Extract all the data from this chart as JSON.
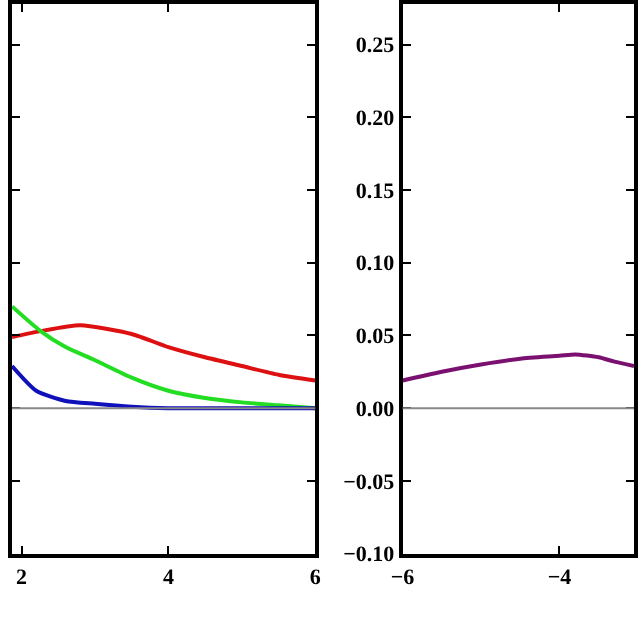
{
  "chart_data": [
    {
      "type": "line",
      "xlim": [
        1.87,
        6
      ],
      "xticks": [
        2,
        4,
        6
      ],
      "ylim": [
        -0.1,
        0.278
      ],
      "yticks": [
        -0.1,
        -0.05,
        0,
        0.05,
        0.1,
        0.15,
        0.2,
        0.25
      ],
      "tick_labels": "x",
      "ref_lines": [
        {
          "axis": "y",
          "value": 0,
          "color": "#888888"
        }
      ],
      "series": [
        {
          "color": "#dd1111",
          "x": [
            1.87,
            2.26,
            2.8,
            3.5,
            4,
            4.5,
            5,
            5.5,
            6
          ],
          "values": [
            0.049,
            0.053,
            0.057,
            0.051,
            0.042,
            0.035,
            0.029,
            0.023,
            0.019
          ]
        },
        {
          "color": "#22dd22",
          "x": [
            1.87,
            2.26,
            2.6,
            3,
            3.5,
            4,
            4.5,
            5,
            5.5,
            6
          ],
          "values": [
            0.07,
            0.053,
            0.042,
            0.033,
            0.021,
            0.012,
            0.007,
            0.004,
            0.002,
            0
          ]
        },
        {
          "color": "#1111bb",
          "x": [
            1.87,
            2.2,
            2.6,
            3,
            3.5,
            4,
            5,
            6
          ],
          "values": [
            0.029,
            0.012,
            0.005,
            0.003,
            0.001,
            0,
            0,
            0
          ]
        }
      ]
    },
    {
      "type": "line",
      "xlim": [
        -6,
        -3.05
      ],
      "xticks": [
        {
          "value": -6,
          "label": "−6"
        },
        {
          "value": -4,
          "label": "−4"
        }
      ],
      "ylim": [
        -0.1,
        0.278
      ],
      "yticks": [
        {
          "value": -0.1,
          "label": "−0.10"
        },
        {
          "value": -0.05,
          "label": "−0.05"
        },
        {
          "value": 0,
          "label": "0.00"
        },
        {
          "value": 0.05,
          "label": "0.05"
        },
        {
          "value": 0.1,
          "label": "0.10"
        },
        {
          "value": 0.15,
          "label": "0.15"
        },
        {
          "value": 0.2,
          "label": "0.20"
        },
        {
          "value": 0.25,
          "label": "0.25"
        }
      ],
      "ref_lines": [
        {
          "axis": "y",
          "value": 0,
          "color": "#888888"
        }
      ],
      "series": [
        {
          "color": "#7a1070",
          "x": [
            -6,
            -5.5,
            -5,
            -4.5,
            -4,
            -3.8,
            -3.5,
            -3.3,
            -3.05
          ],
          "values": [
            0.019,
            0.025,
            0.03,
            0.034,
            0.036,
            0.037,
            0.035,
            0.032,
            0.029
          ]
        }
      ]
    }
  ]
}
